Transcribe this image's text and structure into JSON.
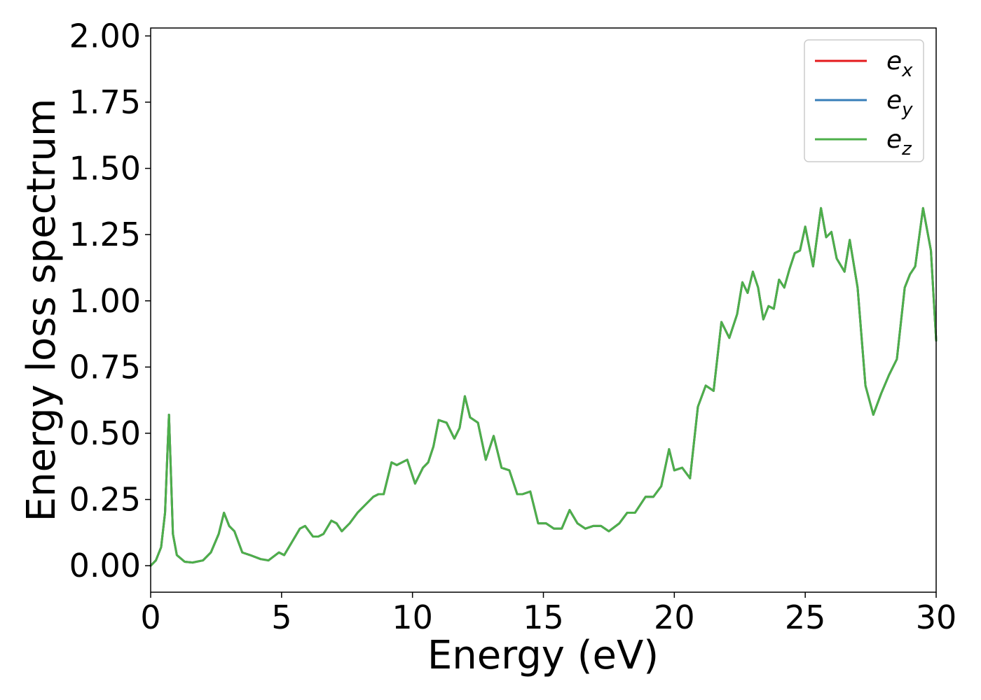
{
  "chart_data": {
    "type": "line",
    "xlabel": "Energy (eV)",
    "ylabel": "Energy loss spectrum",
    "xlim": [
      0,
      30
    ],
    "ylim": [
      -0.1,
      2.03
    ],
    "xticks": [
      0,
      5,
      10,
      15,
      20,
      25,
      30
    ],
    "xtick_labels": [
      "0",
      "5",
      "10",
      "15",
      "20",
      "25",
      "30"
    ],
    "yticks": [
      0.0,
      0.25,
      0.5,
      0.75,
      1.0,
      1.25,
      1.5,
      1.75,
      2.0
    ],
    "ytick_labels": [
      "0.00",
      "0.25",
      "0.50",
      "0.75",
      "1.00",
      "1.25",
      "1.50",
      "1.75",
      "2.00"
    ],
    "grid": false,
    "legend_position": "top-right",
    "series": [
      {
        "name": "e",
        "sub": "x",
        "color": "#e41a1c"
      },
      {
        "name": "e",
        "sub": "y",
        "color": "#377eb8"
      },
      {
        "name": "e",
        "sub": "z",
        "color": "#4daf4a"
      }
    ],
    "x": [
      0,
      0.2,
      0.4,
      0.55,
      0.65,
      0.7,
      0.75,
      0.85,
      1.0,
      1.3,
      1.6,
      2.0,
      2.3,
      2.6,
      2.8,
      3.0,
      3.2,
      3.5,
      3.8,
      4.2,
      4.5,
      4.9,
      5.1,
      5.4,
      5.7,
      5.9,
      6.2,
      6.4,
      6.6,
      6.9,
      7.1,
      7.3,
      7.6,
      7.9,
      8.2,
      8.5,
      8.7,
      8.9,
      9.2,
      9.4,
      9.6,
      9.8,
      10.1,
      10.4,
      10.6,
      10.8,
      11.0,
      11.3,
      11.6,
      11.8,
      12.0,
      12.2,
      12.5,
      12.8,
      13.1,
      13.4,
      13.7,
      14.0,
      14.2,
      14.5,
      14.8,
      15.1,
      15.4,
      15.7,
      16.0,
      16.3,
      16.6,
      16.9,
      17.2,
      17.5,
      17.9,
      18.2,
      18.5,
      18.9,
      19.2,
      19.5,
      19.8,
      20.0,
      20.3,
      20.6,
      20.9,
      21.2,
      21.5,
      21.8,
      22.1,
      22.4,
      22.6,
      22.8,
      23.0,
      23.2,
      23.4,
      23.6,
      23.8,
      24.0,
      24.2,
      24.4,
      24.6,
      24.8,
      25.0,
      25.3,
      25.6,
      25.8,
      26.0,
      26.2,
      26.5,
      26.7,
      27.0,
      27.3,
      27.6,
      27.9,
      28.2,
      28.5,
      28.8,
      29.0,
      29.2,
      29.5,
      29.8,
      30.0
    ],
    "y": [
      0.0,
      0.02,
      0.07,
      0.2,
      0.45,
      0.57,
      0.42,
      0.12,
      0.04,
      0.015,
      0.012,
      0.02,
      0.05,
      0.12,
      0.2,
      0.15,
      0.13,
      0.05,
      0.04,
      0.025,
      0.02,
      0.05,
      0.04,
      0.09,
      0.14,
      0.15,
      0.11,
      0.11,
      0.12,
      0.17,
      0.16,
      0.13,
      0.16,
      0.2,
      0.23,
      0.26,
      0.27,
      0.27,
      0.39,
      0.38,
      0.39,
      0.4,
      0.31,
      0.37,
      0.39,
      0.45,
      0.55,
      0.54,
      0.48,
      0.52,
      0.64,
      0.56,
      0.54,
      0.4,
      0.49,
      0.37,
      0.36,
      0.27,
      0.27,
      0.28,
      0.16,
      0.16,
      0.14,
      0.14,
      0.21,
      0.16,
      0.14,
      0.15,
      0.15,
      0.13,
      0.16,
      0.2,
      0.2,
      0.26,
      0.26,
      0.3,
      0.44,
      0.36,
      0.37,
      0.33,
      0.6,
      0.68,
      0.66,
      0.92,
      0.86,
      0.95,
      1.07,
      1.03,
      1.11,
      1.05,
      0.93,
      0.98,
      0.97,
      1.08,
      1.05,
      1.12,
      1.18,
      1.19,
      1.28,
      1.13,
      1.35,
      1.24,
      1.26,
      1.16,
      1.11,
      1.23,
      1.05,
      0.68,
      0.57,
      0.65,
      0.72,
      0.78,
      1.05,
      1.1,
      1.13,
      1.35,
      1.19,
      0.85
    ]
  }
}
